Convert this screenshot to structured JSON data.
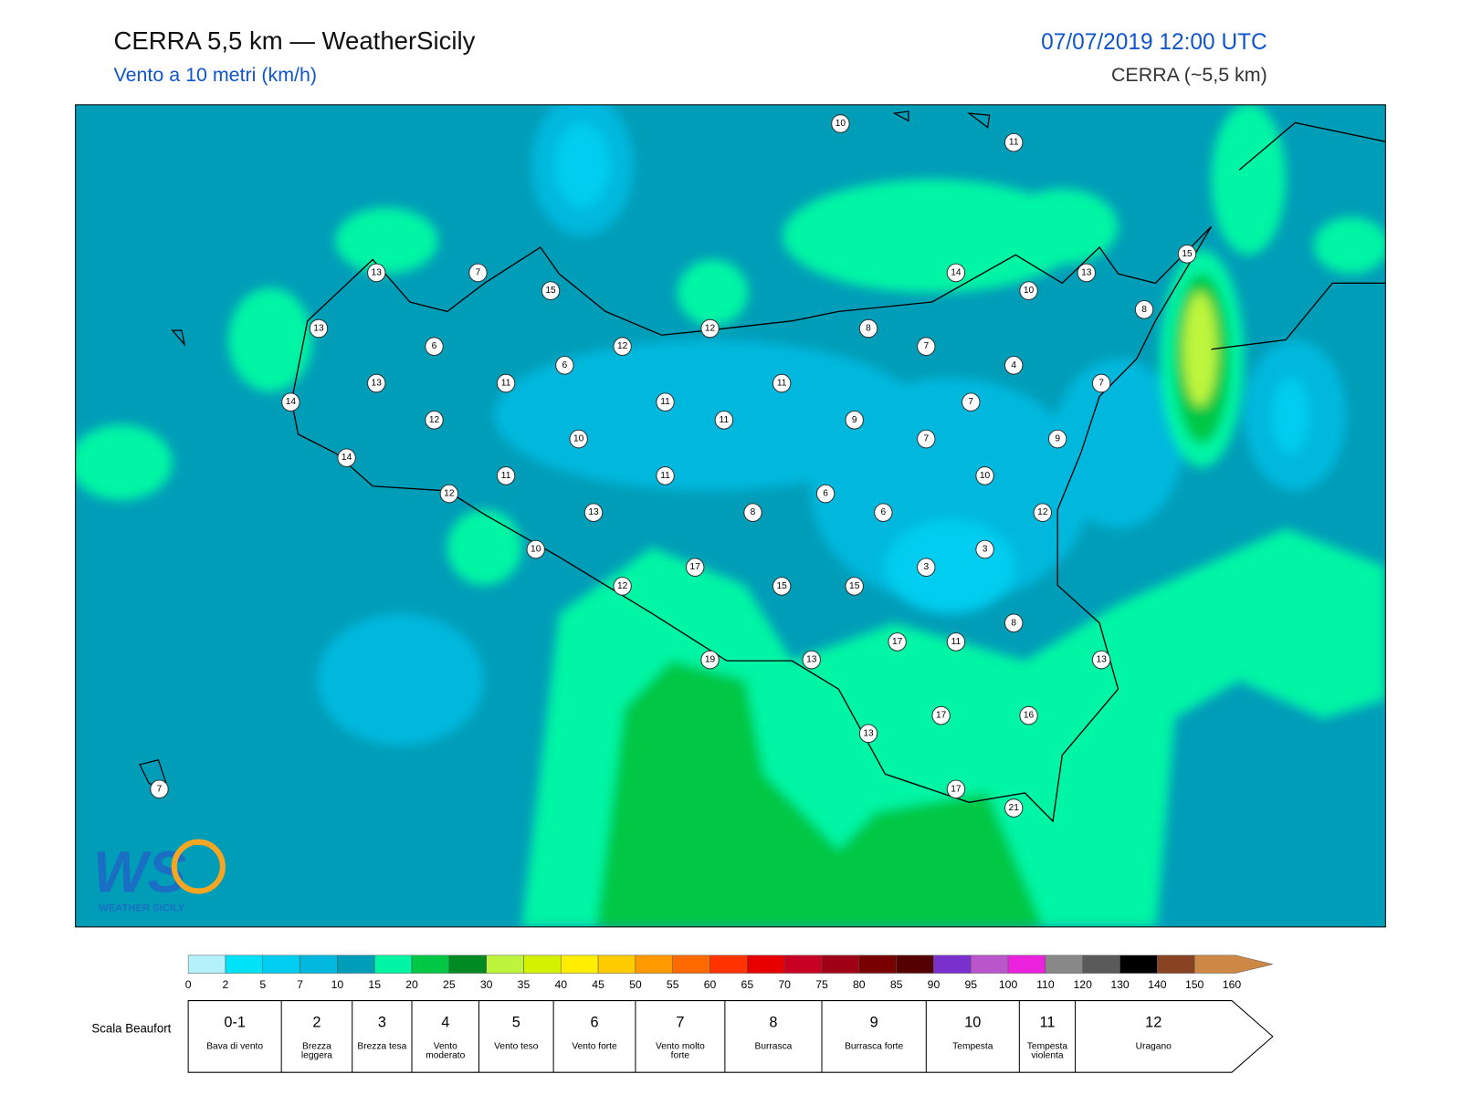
{
  "header": {
    "title": "CERRA 5,5 km — WeatherSicily",
    "subtitle": "Vento a 10 metri (km/h)",
    "datetime": "07/07/2019 12:00 UTC",
    "source": "CERRA (~5,5 km)"
  },
  "stations": [
    10,
    11,
    13,
    7,
    15,
    14,
    13,
    15,
    10,
    8,
    13,
    12,
    8,
    6,
    12,
    7,
    6,
    4,
    13,
    11,
    11,
    7,
    14,
    11,
    7,
    12,
    11,
    9,
    10,
    7,
    9,
    14,
    11,
    11,
    10,
    12,
    6,
    13,
    8,
    6,
    12,
    10,
    3,
    3,
    17,
    12,
    15,
    15,
    8,
    17,
    11,
    19,
    13,
    13,
    17,
    16,
    13,
    7,
    17,
    21
  ],
  "colorbar": {
    "ticks": [
      0,
      2,
      5,
      7,
      10,
      15,
      20,
      25,
      30,
      35,
      40,
      45,
      50,
      55,
      60,
      65,
      70,
      75,
      80,
      85,
      90,
      95,
      100,
      110,
      120,
      130,
      140,
      150,
      160
    ],
    "colors": [
      "#b3f2fb",
      "#00e2f8",
      "#00cdef",
      "#00b8dd",
      "#009db8",
      "#00f5a4",
      "#00c845",
      "#008a24",
      "#bef53c",
      "#d4f200",
      "#ffee00",
      "#ffcc00",
      "#ff9900",
      "#ff6a00",
      "#ff3300",
      "#e80000",
      "#c80022",
      "#a00014",
      "#780000",
      "#540000",
      "#7a30cc",
      "#bb55cc",
      "#ea22dd",
      "#888888",
      "#5a5a5a",
      "#000000",
      "#884422",
      "#cc8844"
    ]
  },
  "beaufort": {
    "title": "Scala Beaufort",
    "levels": [
      {
        "force": "0-1",
        "label": "Bava di vento"
      },
      {
        "force": 2,
        "label": "Brezza leggera"
      },
      {
        "force": 3,
        "label": "Brezza tesa"
      },
      {
        "force": 4,
        "label": "Vento moderato"
      },
      {
        "force": 5,
        "label": "Vento teso"
      },
      {
        "force": 6,
        "label": "Vento forte"
      },
      {
        "force": 7,
        "label": "Vento molto forte"
      },
      {
        "force": 8,
        "label": "Burrasca"
      },
      {
        "force": 9,
        "label": "Burrasca forte"
      },
      {
        "force": 10,
        "label": "Tempesta"
      },
      {
        "force": 11,
        "label": "Tempesta violenta"
      },
      {
        "force": 12,
        "label": "Uragano"
      }
    ]
  },
  "logo": {
    "text": "WEATHER SICILY"
  }
}
